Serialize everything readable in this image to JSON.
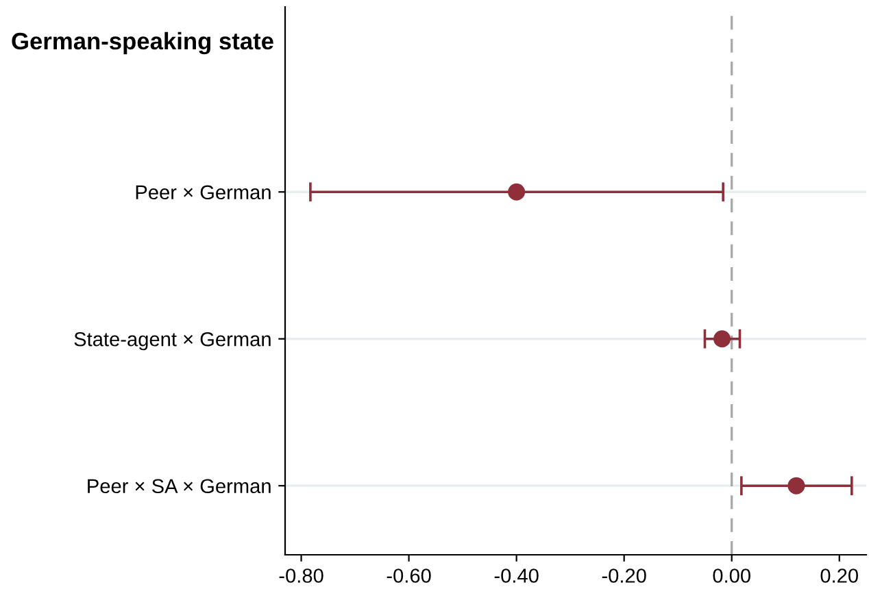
{
  "chart_data": {
    "type": "scatter",
    "orientation": "horizontal",
    "title": "German-speaking state",
    "categories": [
      "Peer × German",
      "State-agent × German",
      "Peer × SA × German"
    ],
    "values": [
      -0.4,
      -0.018,
      0.12
    ],
    "errors": [
      [
        -0.783,
        -0.016
      ],
      [
        -0.05,
        0.015
      ],
      [
        0.018,
        0.223
      ]
    ],
    "color": "#8e2f3a",
    "marker": "circle",
    "xlim": [
      -0.83,
      0.25
    ],
    "xticks": [
      {
        "value": -0.8,
        "label": "-0.80"
      },
      {
        "value": -0.6,
        "label": "-0.60"
      },
      {
        "value": -0.4,
        "label": "-0.40"
      },
      {
        "value": -0.2,
        "label": "-0.20"
      },
      {
        "value": 0.0,
        "label": "0.00"
      },
      {
        "value": 0.2,
        "label": "0.20"
      }
    ],
    "ref_lines": [
      {
        "axis": "x",
        "value": 0,
        "color": "#aaaaaa",
        "line_style": "dashed"
      }
    ],
    "grid": "y",
    "legend": false
  }
}
